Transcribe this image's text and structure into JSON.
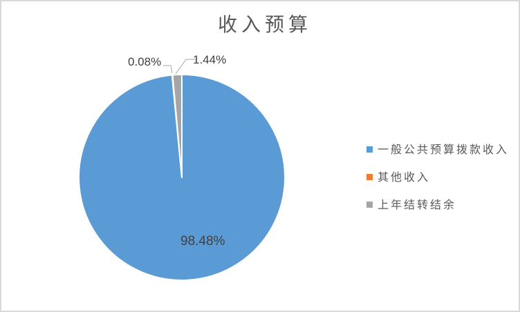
{
  "window": {
    "background_color": "#FFFFFF",
    "border_color": "#D9D9D9"
  },
  "chart_data": {
    "type": "pie",
    "title": "收入预算",
    "legend_position": "right",
    "start_angle_deg": 0,
    "direction": "clockwise",
    "slices": [
      {
        "label": "一般公共预算拨款收入",
        "value": 98.48,
        "data_label": "98.48%",
        "color": "#5B9BD5",
        "label_placement": "inside"
      },
      {
        "label": "其他收入",
        "value": 0.08,
        "data_label": "0.08%",
        "color": "#ED7D31",
        "label_placement": "outside-callout"
      },
      {
        "label": "上年结转结余",
        "value": 1.44,
        "data_label": "1.44%",
        "color": "#A5A5A5",
        "label_placement": "outside-callout"
      }
    ],
    "text_colors": {
      "title": "#595959",
      "legend": "#595959",
      "data_label": "#404040"
    },
    "leader_line_color": "#A6A6A6"
  }
}
